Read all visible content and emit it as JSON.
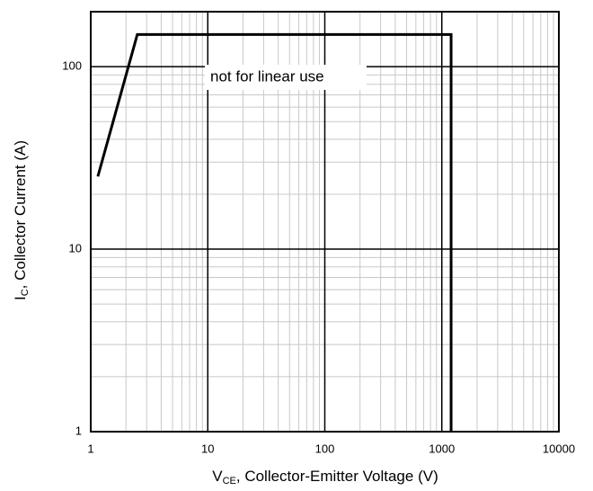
{
  "chart_data": {
    "type": "line",
    "xlabel": {
      "main": "V",
      "sub": "CE",
      "rest": ", Collector-Emitter Voltage (V)"
    },
    "ylabel": {
      "main": "I",
      "sub": "C",
      "rest": ", Collector Current (A)"
    },
    "annotation": "not for linear use",
    "x": [
      1.15,
      2.5,
      1200,
      1200
    ],
    "values": [
      25,
      150,
      150,
      1
    ],
    "color": "#000000",
    "xlim": [
      1,
      10000
    ],
    "xticks": [
      1,
      10,
      100,
      1000,
      10000
    ],
    "ylim": [
      1,
      200
    ],
    "yticks": [
      1,
      10,
      100
    ],
    "log_x": true,
    "log_y": true,
    "grid": true
  }
}
